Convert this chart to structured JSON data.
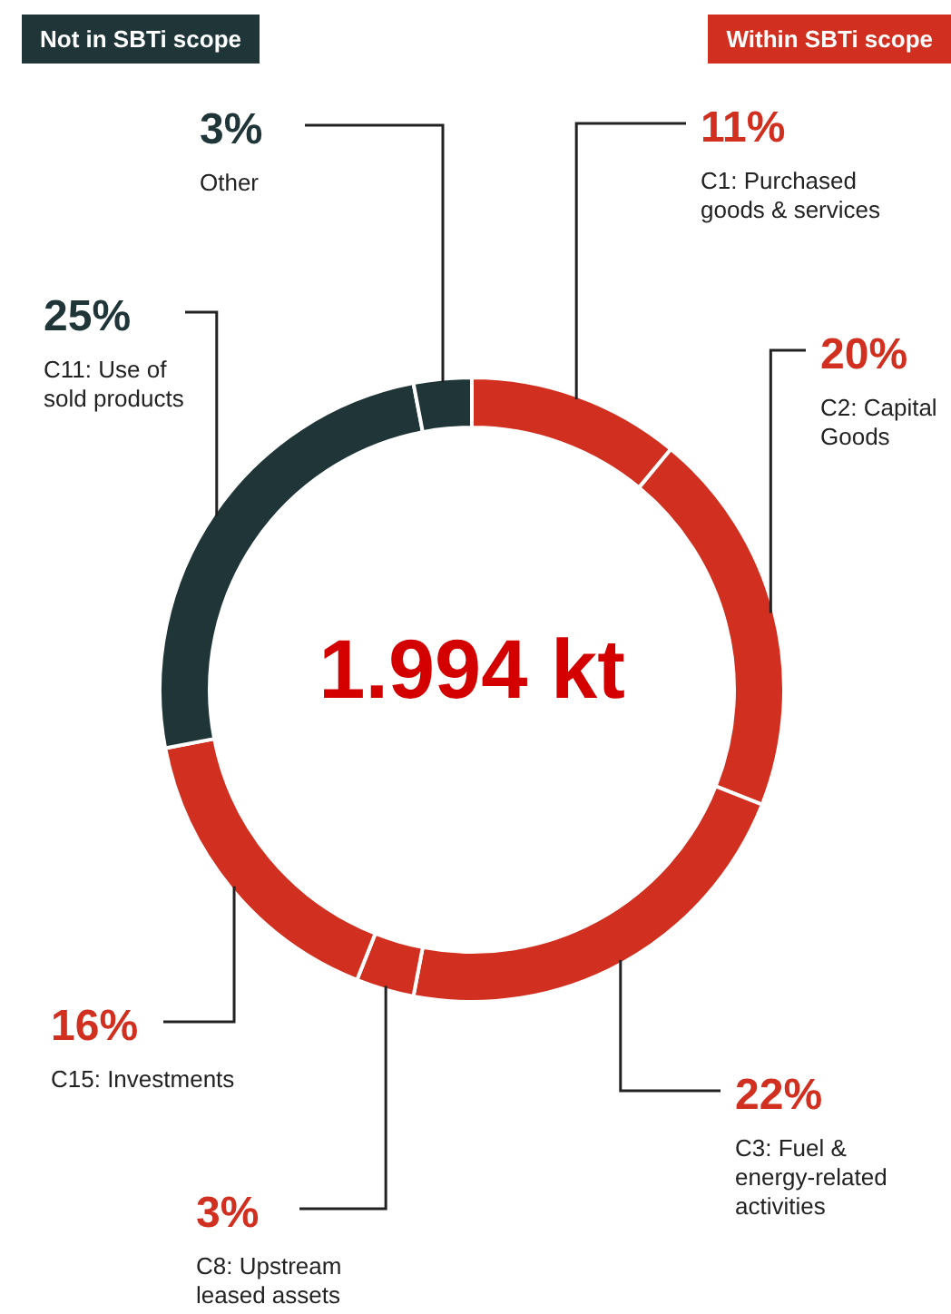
{
  "chart_data": {
    "type": "donut",
    "categories": [
      "C1: Purchased goods & services",
      "C2: Capital Goods",
      "C3: Fuel & energy-related activities",
      "C8: Upstream leased assets",
      "C15: Investments",
      "C11: Use of sold products",
      "Other"
    ],
    "values": [
      11,
      20,
      22,
      3,
      16,
      25,
      3
    ],
    "value_labels": [
      "11%",
      "20%",
      "22%",
      "3%",
      "16%",
      "25%",
      "3%"
    ],
    "colors": [
      "#d12f1f",
      "#d12f1f",
      "#d12f1f",
      "#d12f1f",
      "#d12f1f",
      "#1f3538",
      "#1f3538"
    ],
    "annotations": [
      "Not in SBTi scope",
      "Within SBTi scope",
      "1.994 kt"
    ],
    "legend": false
  }
}
